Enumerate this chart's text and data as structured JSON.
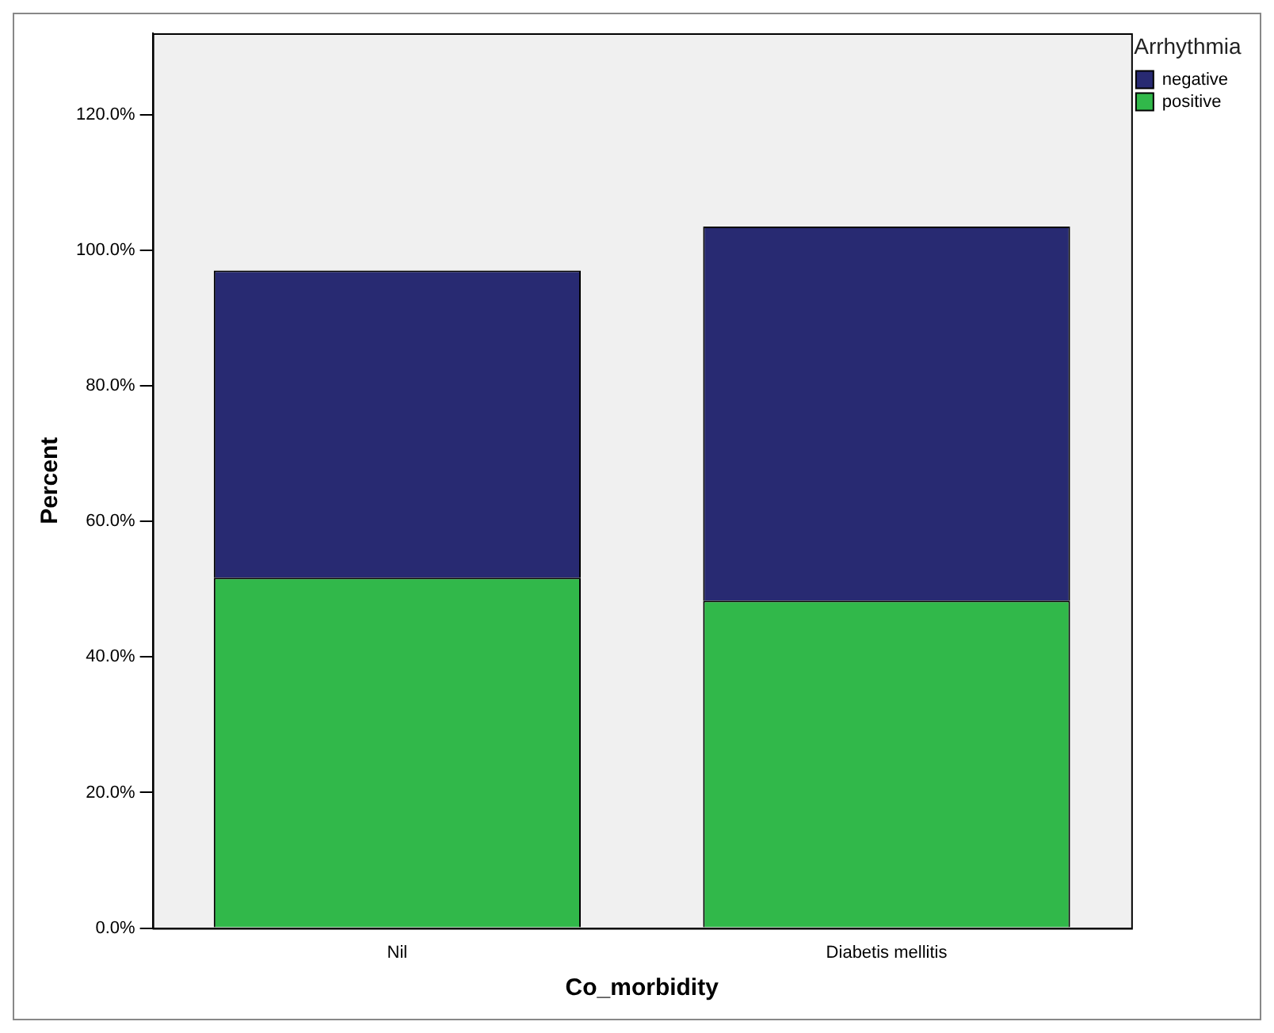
{
  "chart_data": {
    "type": "bar",
    "stacked": true,
    "xlabel": "Co_morbidity",
    "ylabel": "Percent",
    "legend_title": "Arrhythmia",
    "legend": "top right",
    "grid": false,
    "categories": [
      "Nil",
      "Diabetis mellitis"
    ],
    "series": [
      {
        "name": "positive",
        "color": "#31b84a",
        "values": [
          51.7,
          48.3
        ]
      },
      {
        "name": "negative",
        "color": "#282a72",
        "values": [
          45.3,
          55.2
        ]
      }
    ],
    "ylim": [
      0,
      132
    ],
    "yticks": [
      {
        "value": 0,
        "label": "0.0%"
      },
      {
        "value": 20,
        "label": "20.0%"
      },
      {
        "value": 40,
        "label": "40.0%"
      },
      {
        "value": 60,
        "label": "60.0%"
      },
      {
        "value": 80,
        "label": "80.0%"
      },
      {
        "value": 100,
        "label": "100.0%"
      },
      {
        "value": 120,
        "label": "120.0%"
      }
    ]
  }
}
